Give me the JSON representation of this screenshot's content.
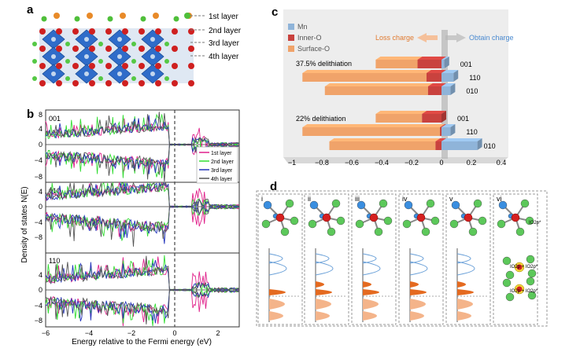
{
  "panels": {
    "a": {
      "label": "a",
      "layers": [
        "1st layer",
        "2nd layer",
        "3rd layer",
        "4th layer"
      ]
    },
    "b": {
      "label": "b",
      "ylabel": "Density of states N(E)",
      "xlabel": "Energy relative to the Fermi energy (eV)",
      "xticks": [
        "−6",
        "−4",
        "−2",
        "0",
        "2"
      ],
      "subpanels": [
        {
          "name": "001",
          "yticks": [
            "8",
            "4",
            "0",
            "−4",
            "−8"
          ]
        },
        {
          "name": "010",
          "yticks": [
            "4",
            "0",
            "−4",
            "−8"
          ]
        },
        {
          "name": "110",
          "yticks": [
            "4",
            "0",
            "−4",
            "−8"
          ]
        }
      ],
      "legend": [
        "1st layer",
        "2nd layer",
        "3rd layer",
        "4th layer"
      ],
      "colors": [
        "#e0208a",
        "#33dd33",
        "#2233bb",
        "#555555"
      ]
    },
    "c": {
      "label": "c",
      "legend": [
        "Mn",
        "Inner-O",
        "Surface-O"
      ],
      "colors": {
        "Mn": "#8fb4d9",
        "Inner-O": "#c9423e",
        "Surface-O": "#f0a36a"
      },
      "loss_label": "Loss charge",
      "obtain_label": "Obtain charge",
      "groups": [
        "37.5% delithiation",
        "22% delithiation"
      ],
      "xticks": [
        "−1",
        "−0.8",
        "−0.6",
        "−0.4",
        "−0.2",
        "0",
        "0.2",
        "0.4"
      ]
    },
    "d": {
      "label": "d",
      "columns": [
        "i",
        "ii",
        "iii",
        "iv",
        "v",
        "vi"
      ],
      "vi_labels": [
        "IO2p*",
        "IO2p + IO2p*",
        "IO2p + IO2p*"
      ]
    }
  },
  "chart_data": [
    {
      "type": "bar",
      "title": "",
      "series": [
        {
          "name": "Mn",
          "values": [
            0.02,
            0.08,
            0.06,
            0.0,
            0.06,
            0.24
          ]
        },
        {
          "name": "Inner-O",
          "values": [
            -0.16,
            -0.1,
            -0.09,
            -0.13,
            -0.01,
            -0.04
          ]
        },
        {
          "name": "Surface-O",
          "values": [
            -0.28,
            -0.83,
            -0.69,
            -0.31,
            -0.92,
            -0.71
          ]
        }
      ],
      "categories": [
        "37.5% 001",
        "37.5% 110",
        "37.5% 010",
        "22% 001",
        "22% 110",
        "22% 010"
      ],
      "category_labels": [
        "001",
        "110",
        "010",
        "001",
        "110",
        "010"
      ],
      "xlim": [
        -1,
        0.4
      ]
    },
    {
      "type": "line",
      "title": "Density of states",
      "xlabel": "Energy relative to the Fermi energy (eV)",
      "ylabel": "Density of states N(E)",
      "xlim": [
        -6,
        3
      ],
      "ylim": [
        -10,
        10
      ],
      "series_names": [
        "1st layer",
        "2nd layer",
        "3rd layer",
        "4th layer"
      ],
      "facets": [
        "001",
        "010",
        "110"
      ]
    }
  ]
}
